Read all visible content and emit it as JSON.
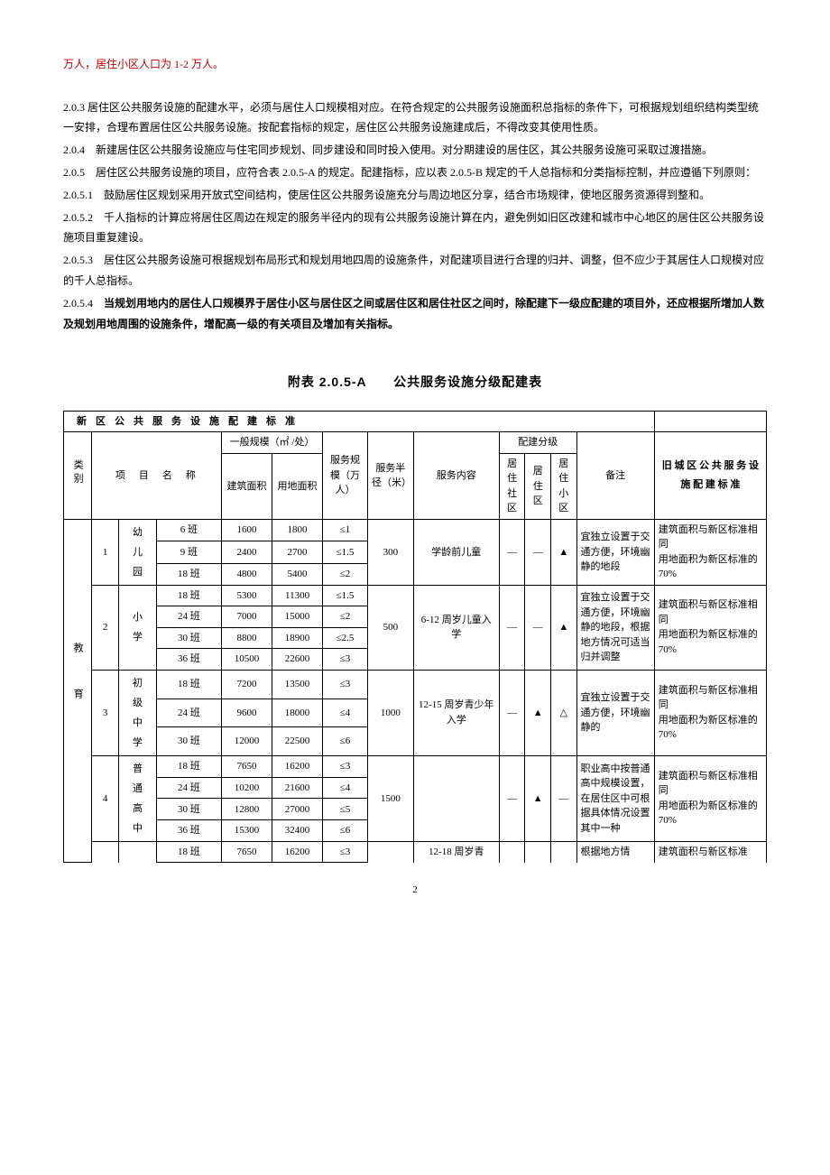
{
  "intro_red": "万人，居住小区人口为 1-2 万人。",
  "para_203": "2.0.3 居住区公共服务设施的配建水平，必须与居住人口规模相对应。在符合规定的公共服务设施面积总指标的条件下，可根据规划组织结构类型统一安排，合理布置居住区公共服务设施。按配套指标的规定，居住区公共服务设施建成后，不得改变其使用性质。",
  "para_204": "2.0.4　新建居住区公共服务设施应与住宅同步规划、同步建设和同时投入使用。对分期建设的居住区，其公共服务设施可采取过渡措施。",
  "para_205": "2.0.5　居住区公共服务设施的项目，应符合表 2.0.5-A 的规定。配建指标，应以表 2.0.5-B 规定的千人总指标和分类指标控制，并应遵循下列原则：",
  "para_2051": "2.0.5.1　鼓励居住区规划采用开放式空间结构，使居住区公共服务设施充分与周边地区分享，结合市场规律，使地区服务资源得到整和。",
  "para_2052": "2.0.5.2　千人指标的计算应将居住区周边在规定的服务半径内的现有公共服务设施计算在内，避免例如旧区改建和城市中心地区的居住区公共服务设施项目重复建设。",
  "para_2053": "2.0.5.3　居住区公共服务设施可根据规划布局形式和规划用地四周的设施条件，对配建项目进行合理的归并、调整，但不应少于其居住人口规模对应的千人总指标。",
  "para_2054_a": "2.0.5.4　",
  "para_2054_b": "当规划用地内的居住人口规模界于居住小区与居住区之间或居住区和居住社区之间时，除配建下一级应配建的项目外，还应根据所增加人数及规划用地周围的设施条件，增配高一级的有关项目及增加有关指标。",
  "table_title": "附表 2.0.5-A　　公共服务设施分级配建表",
  "header_new": "新区公共服务设施配建标准",
  "col": {
    "category": "类别",
    "project": "项　目　名　称",
    "scale": "一般规模（㎡ /处）",
    "build_area": "建筑面积",
    "land_area": "用地面积",
    "svc_scale": "服务规模（万人）",
    "svc_radius": "服务半径（米）",
    "svc_content": "服务内容",
    "grade": "配建分级",
    "g1": "居住社区",
    "g2": "居住区",
    "g3": "居住小区",
    "remark": "备注",
    "old": "旧 城 区 公 共 服 务 设 施 配 建 标 准"
  },
  "cat_edu": "教育",
  "groups": [
    {
      "idx": "1",
      "name": "幼儿园",
      "rows": [
        {
          "cls": "6 班",
          "b": "1600",
          "l": "1800",
          "s": "≤1"
        },
        {
          "cls": "9 班",
          "b": "2400",
          "l": "2700",
          "s": "≤1.5"
        },
        {
          "cls": "18 班",
          "b": "4800",
          "l": "5400",
          "s": "≤2"
        }
      ],
      "radius": "300",
      "content": "学龄前儿童",
      "g": [
        "—",
        "—",
        "▲"
      ],
      "remark": "宜独立设置于交通方便，环境幽静的地段",
      "old": "建筑面积与新区标准相同\n用地面积为新区标准的 70%"
    },
    {
      "idx": "2",
      "name": "小学",
      "rows": [
        {
          "cls": "18 班",
          "b": "5300",
          "l": "11300",
          "s": "≤1.5"
        },
        {
          "cls": "24 班",
          "b": "7000",
          "l": "15000",
          "s": "≤2"
        },
        {
          "cls": "30 班",
          "b": "8800",
          "l": "18900",
          "s": "≤2.5"
        },
        {
          "cls": "36 班",
          "b": "10500",
          "l": "22600",
          "s": "≤3"
        }
      ],
      "radius": "500",
      "content": "6-12 周岁儿童入学",
      "g": [
        "—",
        "—",
        "▲"
      ],
      "remark": "宜独立设置于交通方便，环境幽静的地段，根据地方情况可适当归并调整",
      "old": "建筑面积与新区标准相同\n用地面积为新区标准的 70%"
    },
    {
      "idx": "3",
      "name": "初级中学",
      "rows": [
        {
          "cls": "18 班",
          "b": "7200",
          "l": "13500",
          "s": "≤3"
        },
        {
          "cls": "24 班",
          "b": "9600",
          "l": "18000",
          "s": "≤4"
        },
        {
          "cls": "30 班",
          "b": "12000",
          "l": "22500",
          "s": "≤6"
        }
      ],
      "radius": "1000",
      "content": "12-15 周岁青少年入学",
      "g": [
        "—",
        "▲",
        "△"
      ],
      "remark": "宜独立设置于交通方便，环境幽静的",
      "old": "建筑面积与新区标准相同\n用地面积为新区标准的 70%"
    },
    {
      "idx": "4",
      "name": "普通高中",
      "rows": [
        {
          "cls": "18 班",
          "b": "7650",
          "l": "16200",
          "s": "≤3"
        },
        {
          "cls": "24 班",
          "b": "10200",
          "l": "21600",
          "s": "≤4"
        },
        {
          "cls": "30 班",
          "b": "12800",
          "l": "27000",
          "s": "≤5"
        },
        {
          "cls": "36 班",
          "b": "15300",
          "l": "32400",
          "s": "≤6"
        }
      ],
      "radius": "1500",
      "content": "",
      "g": [
        "—",
        "▲",
        "—"
      ],
      "remark": "职业高中按普通高中规模设置，在居住区中可根据具体情况设置其中一种",
      "old": "建筑面积与新区标准相同\n用地面积为新区标准的 70%"
    }
  ],
  "last_row": {
    "cls": "18 班",
    "b": "7650",
    "l": "16200",
    "s": "≤3",
    "content": "12-18 周岁青",
    "remark": "根据地方情",
    "old": "建筑面积与新区标准"
  },
  "page_num": "2"
}
